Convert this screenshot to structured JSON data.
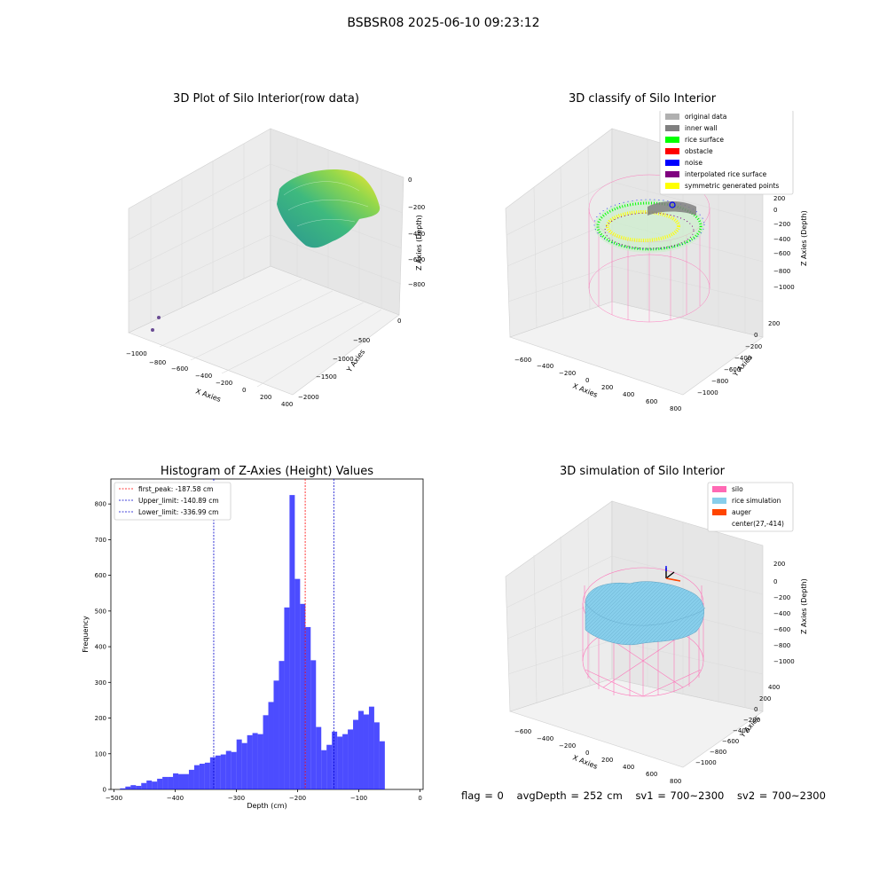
{
  "figure": {
    "title": "BSBSR08 2025-06-10 09:23:12"
  },
  "plot1": {
    "title": "3D Plot of Silo Interior(row data)",
    "xlabel": "X Axies",
    "ylabel": "Y Axies",
    "zlabel": "Z Axies (Depth)",
    "x_ticks": [
      "−1000",
      "−800",
      "−600",
      "−400",
      "−200",
      "0",
      "200",
      "400"
    ],
    "y_ticks": [
      "0",
      "−500",
      "−1000",
      "−1500",
      "−2000"
    ],
    "z_ticks": [
      "0",
      "−200",
      "−400",
      "−600",
      "−800"
    ]
  },
  "plot2": {
    "title": "3D classify of Silo Interior",
    "xlabel": "X Axies",
    "ylabel": "Y Axies",
    "zlabel": "Z Axies (Depth)",
    "x_ticks": [
      "−600",
      "−400",
      "−200",
      "0",
      "200",
      "400",
      "600",
      "800"
    ],
    "y_ticks": [
      "200",
      "0",
      "−200",
      "−400",
      "−600",
      "−800",
      "−1000"
    ],
    "z_ticks": [
      "200",
      "0",
      "−200",
      "−400",
      "−600",
      "−800",
      "−1000"
    ],
    "legend": [
      {
        "label": "original data",
        "color": "#b0b0b0"
      },
      {
        "label": "inner wall",
        "color": "#808080"
      },
      {
        "label": "rice surface",
        "color": "#00ff00"
      },
      {
        "label": "obstacle",
        "color": "#ff0000"
      },
      {
        "label": "noise",
        "color": "#0000ff"
      },
      {
        "label": "interpolated rice surface",
        "color": "#800080"
      },
      {
        "label": "symmetric generated points",
        "color": "#ffff00"
      }
    ]
  },
  "plot4": {
    "title": "3D simulation of Silo Interior",
    "xlabel": "X Axies",
    "ylabel": "Y Axies",
    "zlabel": "Z Axies (Depth)",
    "x_ticks": [
      "−600",
      "−400",
      "−200",
      "0",
      "200",
      "400",
      "600",
      "800"
    ],
    "y_ticks": [
      "400",
      "200",
      "0",
      "−200",
      "−400",
      "−600",
      "−800",
      "−1000"
    ],
    "z_ticks": [
      "200",
      "0",
      "−200",
      "−400",
      "−600",
      "−800",
      "−1000"
    ],
    "legend": [
      {
        "label": "silo",
        "color": "#ff69b4"
      },
      {
        "label": "rice simulation",
        "color": "#87ceeb"
      },
      {
        "label": "auger",
        "color": "#ff4500"
      },
      {
        "label": "center(27,-414)",
        "color": ""
      }
    ]
  },
  "chart_data": {
    "type": "bar",
    "title": "Histogram of Z-Axies (Height) Values",
    "xlabel": "Depth (cm)",
    "ylabel": "Frequency",
    "xlim": [
      -505,
      5
    ],
    "ylim": [
      0,
      870
    ],
    "x_ticks": [
      -500,
      -400,
      -300,
      -200,
      -100,
      0
    ],
    "x_tick_labels": [
      "−500",
      "−400",
      "−300",
      "−200",
      "−100",
      "0"
    ],
    "y_ticks": [
      0,
      100,
      200,
      300,
      400,
      500,
      600,
      700,
      800
    ],
    "bar_color": "#0000ff",
    "bin_start": -490,
    "bin_width": 8.65,
    "values": [
      3,
      8,
      12,
      10,
      18,
      25,
      22,
      30,
      35,
      35,
      45,
      43,
      43,
      55,
      68,
      72,
      75,
      90,
      95,
      98,
      108,
      105,
      140,
      130,
      152,
      158,
      155,
      208,
      245,
      305,
      360,
      510,
      825,
      590,
      520,
      455,
      362,
      175,
      110,
      125,
      162,
      148,
      155,
      168,
      195,
      220,
      210,
      232,
      188,
      135
    ],
    "vlines": [
      {
        "label": "first_peak: -187.58 cm",
        "x": -187.58,
        "color": "#ff0000"
      },
      {
        "label": "Upper_limit: -140.89 cm",
        "x": -140.89,
        "color": "#0000cc"
      },
      {
        "label": "Lower_limit: -336.99 cm",
        "x": -336.99,
        "color": "#0000cc"
      }
    ]
  },
  "footer": {
    "flag": "flag = 0",
    "avg_depth": "avgDepth = 252 cm",
    "sv1": "sv1 = 700~2300",
    "sv2": "sv2 = 700~2300"
  }
}
